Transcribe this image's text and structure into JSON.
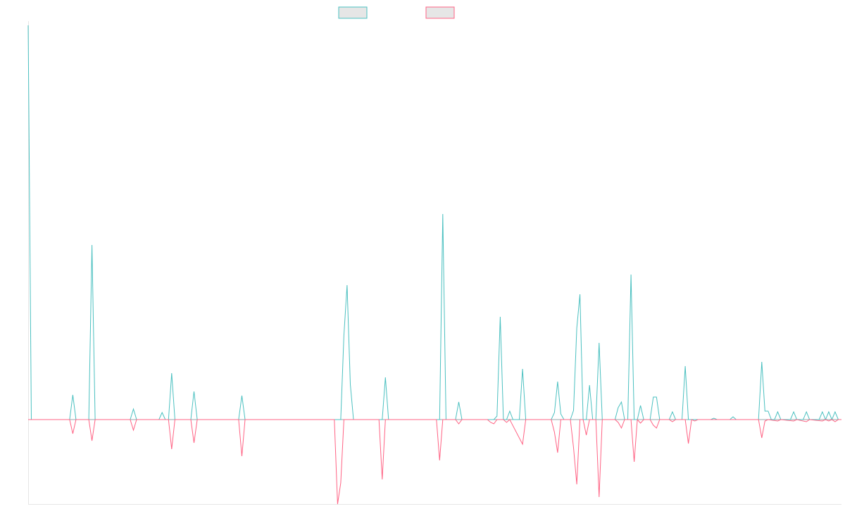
{
  "chart_data": {
    "type": "line",
    "title": "",
    "xlabel": "",
    "ylabel": "",
    "grid": false,
    "legend_position": "top-center",
    "ylim": [
      -120,
      560
    ],
    "series": [
      {
        "label": "",
        "color": "#4bc0c0",
        "fill": "#e6e6e6",
        "points": [
          [
            0,
            560
          ],
          [
            1,
            0
          ],
          [
            13,
            0
          ],
          [
            14,
            35
          ],
          [
            15,
            0
          ],
          [
            19,
            0
          ],
          [
            20,
            248
          ],
          [
            21,
            0
          ],
          [
            32,
            0
          ],
          [
            33,
            15
          ],
          [
            34,
            0
          ],
          [
            41,
            0
          ],
          [
            42,
            10
          ],
          [
            43,
            0
          ],
          [
            44,
            0
          ],
          [
            45,
            66
          ],
          [
            46,
            0
          ],
          [
            51,
            0
          ],
          [
            52,
            40
          ],
          [
            53,
            0
          ],
          [
            66,
            0
          ],
          [
            67,
            34
          ],
          [
            68,
            0
          ],
          [
            98,
            0
          ],
          [
            99,
            120
          ],
          [
            100,
            191
          ],
          [
            101,
            50
          ],
          [
            102,
            0
          ],
          [
            111,
            0
          ],
          [
            112,
            60
          ],
          [
            113,
            0
          ],
          [
            129,
            0
          ],
          [
            130,
            292
          ],
          [
            131,
            0
          ],
          [
            134,
            0
          ],
          [
            135,
            25
          ],
          [
            136,
            0
          ],
          [
            146,
            0
          ],
          [
            147,
            5
          ],
          [
            148,
            146
          ],
          [
            149,
            0
          ],
          [
            150,
            0
          ],
          [
            151,
            12
          ],
          [
            152,
            0
          ],
          [
            154,
            0
          ],
          [
            155,
            72
          ],
          [
            156,
            0
          ],
          [
            164,
            0
          ],
          [
            165,
            10
          ],
          [
            166,
            54
          ],
          [
            167,
            8
          ],
          [
            168,
            0
          ],
          [
            169,
            0
          ],
          [
            170,
            0
          ],
          [
            171,
            13
          ],
          [
            172,
            130
          ],
          [
            173,
            178
          ],
          [
            174,
            0
          ],
          [
            175,
            0
          ],
          [
            176,
            49
          ],
          [
            177,
            0
          ],
          [
            178,
            0
          ],
          [
            179,
            109
          ],
          [
            180,
            0
          ],
          [
            184,
            0
          ],
          [
            185,
            17
          ],
          [
            186,
            25
          ],
          [
            187,
            0
          ],
          [
            188,
            0
          ],
          [
            189,
            206
          ],
          [
            190,
            0
          ],
          [
            191,
            0
          ],
          [
            192,
            20
          ],
          [
            193,
            0
          ],
          [
            194,
            0
          ],
          [
            195,
            0
          ],
          [
            196,
            32
          ],
          [
            197,
            32
          ],
          [
            198,
            0
          ],
          [
            201,
            0
          ],
          [
            202,
            11
          ],
          [
            203,
            0
          ],
          [
            205,
            0
          ],
          [
            206,
            76
          ],
          [
            207,
            0
          ],
          [
            208,
            0
          ],
          [
            209,
            0
          ],
          [
            214,
            0
          ],
          [
            215,
            2
          ],
          [
            216,
            0
          ],
          [
            220,
            0
          ],
          [
            221,
            4
          ],
          [
            222,
            0
          ],
          [
            229,
            0
          ],
          [
            230,
            82
          ],
          [
            231,
            12
          ],
          [
            232,
            12
          ],
          [
            233,
            0
          ],
          [
            234,
            0
          ],
          [
            235,
            11
          ],
          [
            236,
            0
          ],
          [
            239,
            0
          ],
          [
            240,
            11
          ],
          [
            241,
            0
          ],
          [
            243,
            0
          ],
          [
            244,
            11
          ],
          [
            245,
            0
          ],
          [
            248,
            0
          ],
          [
            249,
            11
          ],
          [
            250,
            0
          ],
          [
            251,
            11
          ],
          [
            252,
            0
          ],
          [
            253,
            11
          ],
          [
            254,
            0
          ],
          [
            255,
            0
          ]
        ]
      },
      {
        "label": "",
        "color": "#ff6384",
        "fill": "#e6e6e6",
        "points": [
          [
            0,
            0
          ],
          [
            13,
            0
          ],
          [
            14,
            -20
          ],
          [
            15,
            0
          ],
          [
            19,
            0
          ],
          [
            20,
            -30
          ],
          [
            21,
            0
          ],
          [
            32,
            0
          ],
          [
            33,
            -15
          ],
          [
            34,
            0
          ],
          [
            44,
            0
          ],
          [
            45,
            -42
          ],
          [
            46,
            0
          ],
          [
            51,
            0
          ],
          [
            52,
            -33
          ],
          [
            53,
            0
          ],
          [
            66,
            0
          ],
          [
            67,
            -52
          ],
          [
            68,
            0
          ],
          [
            96,
            0
          ],
          [
            97,
            -120
          ],
          [
            98,
            -90
          ],
          [
            99,
            0
          ],
          [
            110,
            0
          ],
          [
            111,
            -85
          ],
          [
            112,
            0
          ],
          [
            128,
            0
          ],
          [
            129,
            -58
          ],
          [
            130,
            0
          ],
          [
            134,
            0
          ],
          [
            135,
            -6
          ],
          [
            136,
            0
          ],
          [
            144,
            0
          ],
          [
            145,
            -4
          ],
          [
            146,
            -6
          ],
          [
            147,
            0
          ],
          [
            149,
            0
          ],
          [
            150,
            -4
          ],
          [
            151,
            0
          ],
          [
            155,
            -35
          ],
          [
            156,
            0
          ],
          [
            164,
            0
          ],
          [
            165,
            -18
          ],
          [
            166,
            -47
          ],
          [
            167,
            0
          ],
          [
            170,
            0
          ],
          [
            171,
            -40
          ],
          [
            172,
            -92
          ],
          [
            173,
            0
          ],
          [
            174,
            0
          ],
          [
            175,
            -22
          ],
          [
            176,
            0
          ],
          [
            178,
            0
          ],
          [
            179,
            -110
          ],
          [
            180,
            0
          ],
          [
            184,
            0
          ],
          [
            185,
            -4
          ],
          [
            186,
            -12
          ],
          [
            187,
            0
          ],
          [
            189,
            0
          ],
          [
            190,
            -60
          ],
          [
            191,
            0
          ],
          [
            192,
            -5
          ],
          [
            193,
            0
          ],
          [
            195,
            0
          ],
          [
            196,
            -8
          ],
          [
            197,
            -12
          ],
          [
            198,
            0
          ],
          [
            201,
            0
          ],
          [
            202,
            -3
          ],
          [
            203,
            0
          ],
          [
            206,
            0
          ],
          [
            207,
            -34
          ],
          [
            208,
            0
          ],
          [
            209,
            -2
          ],
          [
            210,
            0
          ],
          [
            229,
            0
          ],
          [
            230,
            -26
          ],
          [
            231,
            -2
          ],
          [
            232,
            0
          ],
          [
            235,
            -2
          ],
          [
            236,
            0
          ],
          [
            240,
            -2
          ],
          [
            241,
            0
          ],
          [
            244,
            -3
          ],
          [
            245,
            0
          ],
          [
            249,
            -2
          ],
          [
            250,
            0
          ],
          [
            251,
            -2
          ],
          [
            252,
            0
          ],
          [
            253,
            -3
          ],
          [
            254,
            0
          ],
          [
            255,
            0
          ]
        ]
      }
    ]
  }
}
